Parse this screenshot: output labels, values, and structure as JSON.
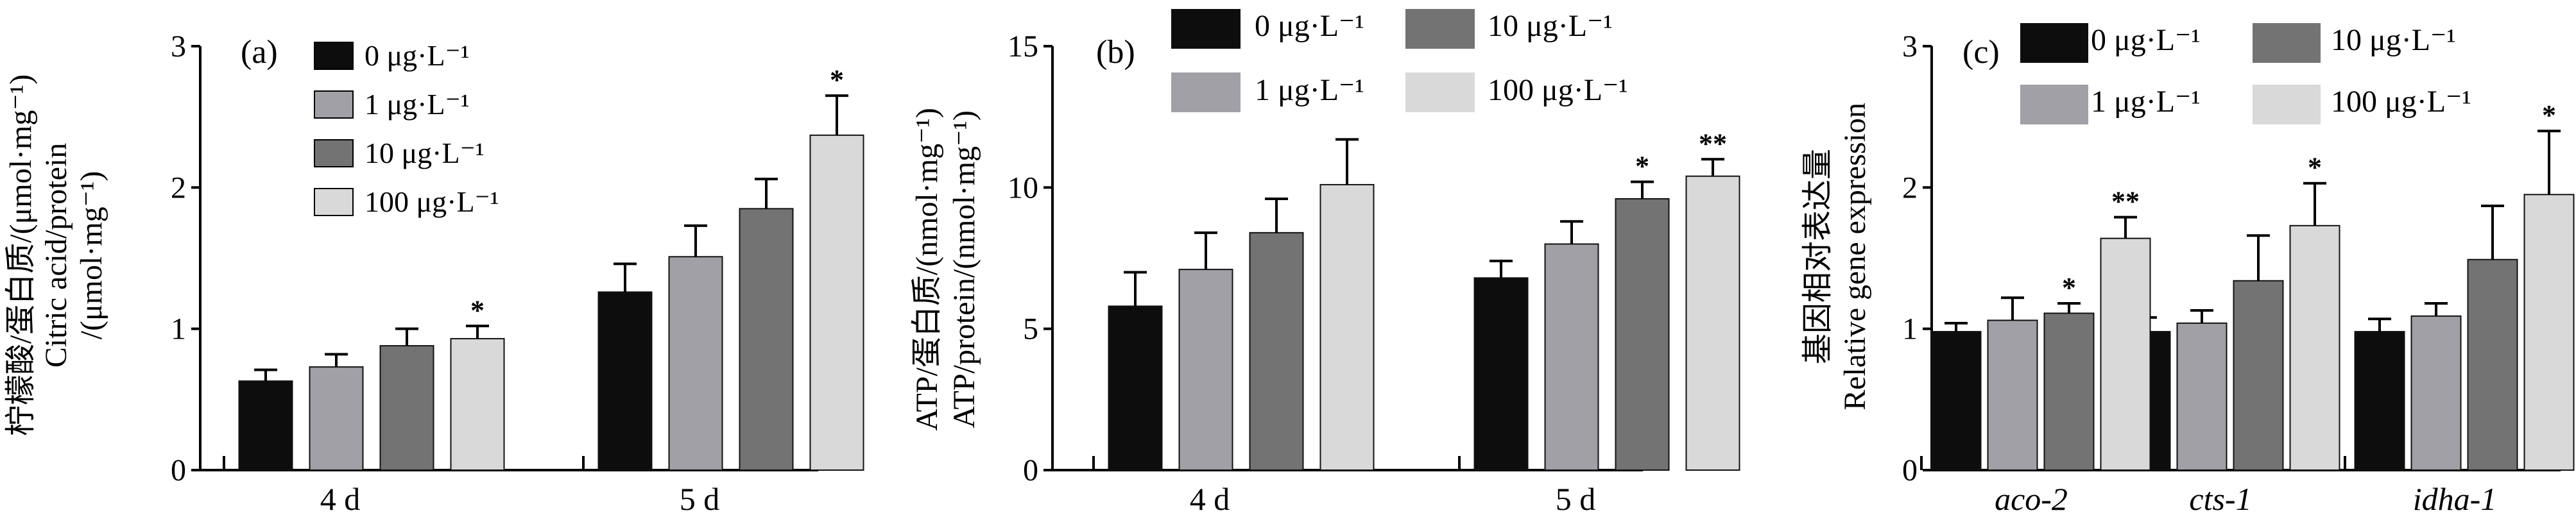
{
  "colors": {
    "0 μg·L⁻¹": "#0d0d0d",
    "1 μg·L⁻¹": "#a0a0a6",
    "10 μg·L⁻¹": "#737373",
    "100 μg·L⁻¹": "#d9d9d9",
    "axis": "#000000"
  },
  "chart_data": [
    {
      "panel_label": "(a)",
      "type": "bar",
      "categories": [
        "4 d",
        "5 d"
      ],
      "category_italic": false,
      "ylabel": [
        "柠檬酸/蛋白质/(μmol·mg⁻¹)",
        "Citric acid/protein",
        "/(μmol·mg⁻¹)"
      ],
      "ylim": [
        0,
        3
      ],
      "yticks": [
        0,
        1,
        2,
        3
      ],
      "legend_position": "top-left",
      "legend_columns": 1,
      "grid": false,
      "series": [
        {
          "name": "0 μg·L⁻¹",
          "values": [
            0.63,
            1.26
          ],
          "errors": [
            0.08,
            0.2
          ],
          "sig": [
            "",
            ""
          ]
        },
        {
          "name": "1 μg·L⁻¹",
          "values": [
            0.73,
            1.51
          ],
          "errors": [
            0.09,
            0.22
          ],
          "sig": [
            "",
            ""
          ]
        },
        {
          "name": "10 μg·L⁻¹",
          "values": [
            0.88,
            1.85
          ],
          "errors": [
            0.12,
            0.21
          ],
          "sig": [
            "",
            ""
          ]
        },
        {
          "name": "100 μg·L⁻¹",
          "values": [
            0.93,
            2.37
          ],
          "errors": [
            0.09,
            0.28
          ],
          "sig": [
            "*",
            "*"
          ]
        }
      ]
    },
    {
      "panel_label": "(b)",
      "type": "bar",
      "categories": [
        "4 d",
        "5 d"
      ],
      "category_italic": false,
      "ylabel": [
        "ATP/蛋白质/(nmol·mg⁻¹)",
        "ATP/protein/(nmol·mg⁻¹)"
      ],
      "ylim": [
        0,
        15
      ],
      "yticks": [
        0,
        5,
        10,
        15
      ],
      "legend_position": "top",
      "legend_columns": 2,
      "grid": false,
      "series": [
        {
          "name": "0 μg·L⁻¹",
          "values": [
            5.8,
            6.8
          ],
          "errors": [
            1.2,
            0.6
          ],
          "sig": [
            "",
            ""
          ]
        },
        {
          "name": "1 μg·L⁻¹",
          "values": [
            7.1,
            8.0
          ],
          "errors": [
            1.3,
            0.8
          ],
          "sig": [
            "",
            ""
          ]
        },
        {
          "name": "10 μg·L⁻¹",
          "values": [
            8.4,
            9.6
          ],
          "errors": [
            1.2,
            0.6
          ],
          "sig": [
            "",
            "*"
          ]
        },
        {
          "name": "100 μg·L⁻¹",
          "values": [
            10.1,
            10.4
          ],
          "errors": [
            1.6,
            0.6
          ],
          "sig": [
            "",
            "**"
          ]
        }
      ]
    },
    {
      "panel_label": "(c)",
      "type": "bar",
      "categories": [
        "aco-2",
        "cts-1",
        "idha-1"
      ],
      "category_italic": true,
      "ylabel": [
        "基因相对表达量",
        "Relative gene expression"
      ],
      "ylim": [
        0,
        3
      ],
      "yticks": [
        0,
        1,
        2,
        3
      ],
      "legend_position": "top",
      "legend_columns": 2,
      "grid": false,
      "series": [
        {
          "name": "0 μg·L⁻¹",
          "values": [
            0.98,
            0.98,
            0.98
          ],
          "errors": [
            0.06,
            0.1,
            0.09
          ],
          "sig": [
            "",
            "",
            ""
          ]
        },
        {
          "name": "1 μg·L⁻¹",
          "values": [
            1.06,
            1.04,
            1.09
          ],
          "errors": [
            0.16,
            0.09,
            0.09
          ],
          "sig": [
            "",
            "",
            ""
          ]
        },
        {
          "name": "10 μg·L⁻¹",
          "values": [
            1.11,
            1.34,
            1.49
          ],
          "errors": [
            0.07,
            0.32,
            0.38
          ],
          "sig": [
            "*",
            "",
            ""
          ]
        },
        {
          "name": "100 μg·L⁻¹",
          "values": [
            1.64,
            1.73,
            1.95
          ],
          "errors": [
            0.15,
            0.3,
            0.45
          ],
          "sig": [
            "**",
            "*",
            "*"
          ]
        }
      ]
    }
  ]
}
